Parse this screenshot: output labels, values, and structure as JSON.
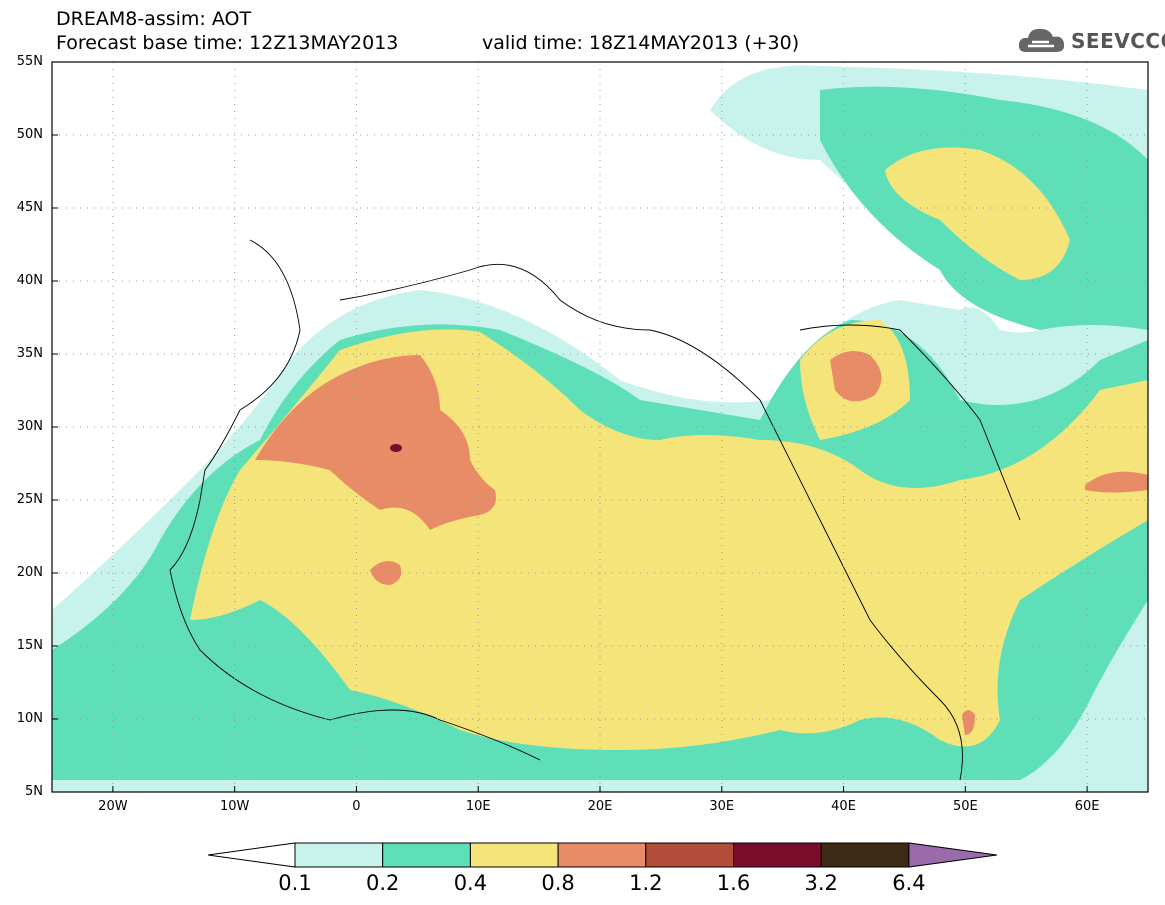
{
  "header": {
    "title_line1": "DREAM8-assim: AOT",
    "title_line2": "Forecast base time: 12Z13MAY2013",
    "valid_time": "valid time: 18Z14MAY2013 (+30)",
    "logo_text": "SEEVCCC"
  },
  "map": {
    "lat_labels": [
      "55N",
      "50N",
      "45N",
      "40N",
      "35N",
      "30N",
      "25N",
      "20N",
      "15N",
      "10N",
      "5N"
    ],
    "lon_labels": [
      "20W",
      "10W",
      "0",
      "10E",
      "20E",
      "30E",
      "40E",
      "50E",
      "60E"
    ],
    "extent": {
      "lon": [
        -25,
        65
      ],
      "lat": [
        5,
        55
      ]
    },
    "grid_lines": "dotted"
  },
  "colorbar": {
    "labels": [
      "0.1",
      "0.2",
      "0.4",
      "0.8",
      "1.2",
      "1.6",
      "3.2",
      "6.4"
    ],
    "colors": [
      "#c8f3ec",
      "#5fdfb8",
      "#f5e47a",
      "#e88c68",
      "#b44c3a",
      "#7c0c2c",
      "#3e2a14"
    ],
    "under_color": "#ffffff",
    "over_color": "#9a6aaa"
  }
}
